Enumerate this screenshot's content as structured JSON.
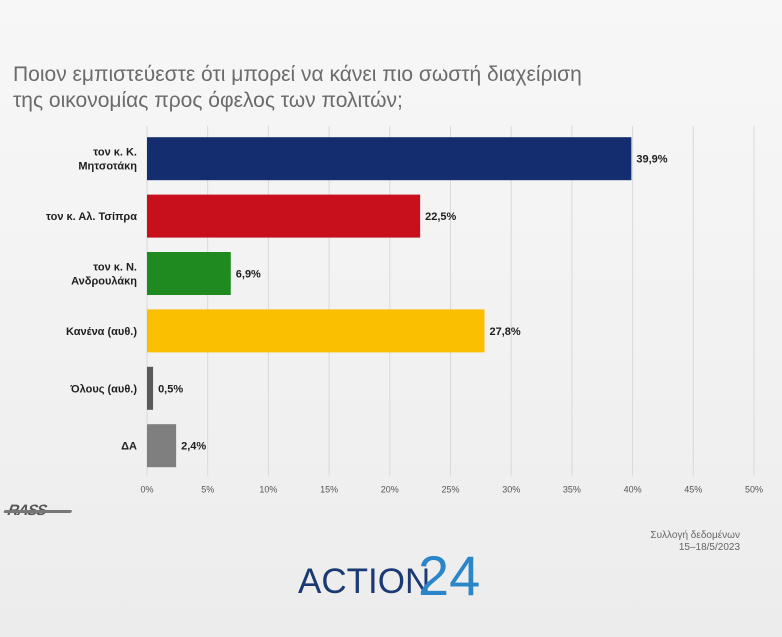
{
  "title_lines": [
    "Ποιον εμπιστεύεστε ότι μπορεί να κάνει πιο σωστή διαχείριση",
    "της οικονομίας προς όφελος των πολιτών;"
  ],
  "source": {
    "line1": "Συλλογή δεδομένων",
    "line2": "15–18/5/2023"
  },
  "logos": {
    "pollster": "RASS",
    "broadcaster_word": "ACTION",
    "broadcaster_number": "24"
  },
  "chart_data": {
    "type": "bar",
    "orientation": "horizontal",
    "categories": [
      [
        "τον κ. Κ.",
        "Μητσοτάκη"
      ],
      [
        "τον κ. Αλ. Τσίπρα"
      ],
      [
        "τον κ. Ν.",
        "Ανδρουλάκη"
      ],
      [
        "Κανένα (αυθ.)"
      ],
      [
        "Όλους (αυθ.)"
      ],
      [
        "ΔΑ"
      ]
    ],
    "values": [
      39.9,
      22.5,
      6.9,
      27.8,
      0.5,
      2.4
    ],
    "value_labels": [
      "39,9%",
      "22,5%",
      "6,9%",
      "27,8%",
      "0,5%",
      "2,4%"
    ],
    "colors": [
      "#142d6e",
      "#c8101c",
      "#1f8a1f",
      "#f9bf00",
      "#5a5a5a",
      "#7f7f7f"
    ],
    "xlim": [
      0,
      50
    ],
    "ticks": [
      0,
      5,
      10,
      15,
      20,
      25,
      30,
      35,
      40,
      45,
      50
    ],
    "tick_labels": [
      "0%",
      "5%",
      "10%",
      "15%",
      "20%",
      "25%",
      "30%",
      "35%",
      "40%",
      "45%",
      "50%"
    ],
    "grid": true
  }
}
